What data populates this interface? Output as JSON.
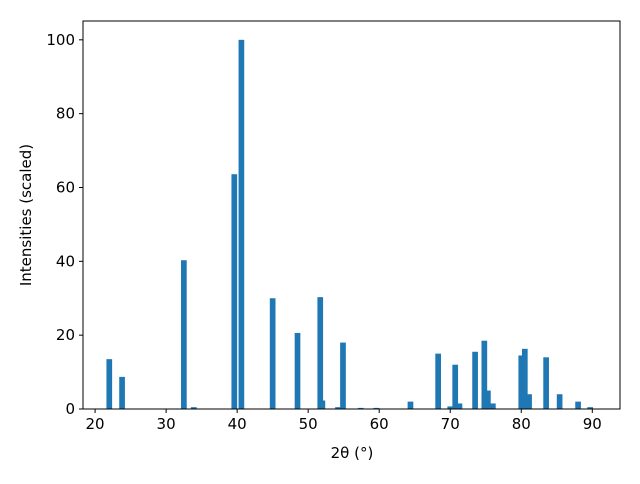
{
  "chart_data": {
    "type": "bar",
    "xlabel": "2θ (°)",
    "ylabel": "Intensities (scaled)",
    "x": [
      22.0,
      23.8,
      32.5,
      33.9,
      39.6,
      40.6,
      45.0,
      48.5,
      51.7,
      52.0,
      54.2,
      54.9,
      57.4,
      59.6,
      64.4,
      68.3,
      70.0,
      70.7,
      71.3,
      73.5,
      74.8,
      75.3,
      76.0,
      80.0,
      80.5,
      81.1,
      83.5,
      85.4,
      88.0,
      89.7
    ],
    "values": [
      13.5,
      8.7,
      40.3,
      0.5,
      63.6,
      100,
      30,
      20.6,
      30.3,
      2.3,
      0.5,
      18,
      0.3,
      0.3,
      2,
      15,
      0.7,
      12,
      1.5,
      15.5,
      18.5,
      5,
      1.5,
      14.5,
      16.3,
      4,
      14,
      4,
      2,
      0.5
    ],
    "color": "#1f77b4",
    "bar_width": 0.8,
    "xlim": [
      18.3,
      93.9
    ],
    "xticks": [
      20,
      30,
      40,
      50,
      60,
      70,
      80,
      90
    ],
    "ylim": [
      0,
      105.1
    ],
    "yticks": [
      0,
      20,
      40,
      60,
      80,
      100
    ],
    "grid": false
  }
}
